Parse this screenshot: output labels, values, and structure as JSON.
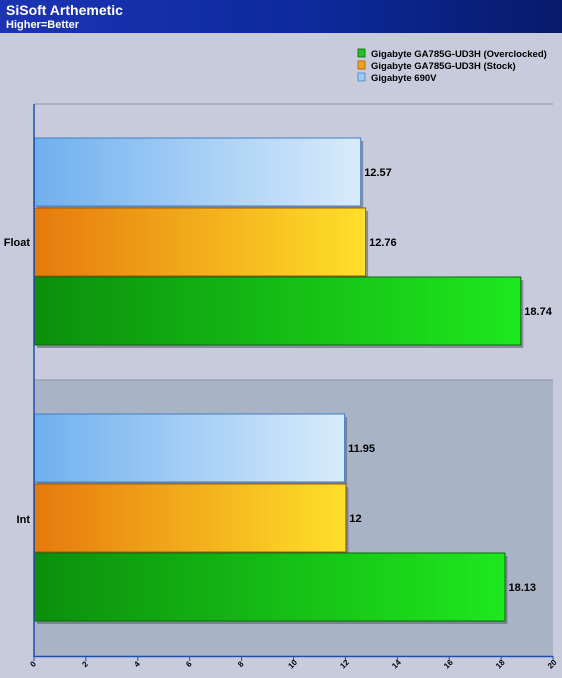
{
  "chart_data": {
    "type": "bar",
    "orientation": "horizontal",
    "title": "SiSoft Arthemetic",
    "subtitle": "Higher=Better",
    "categories": [
      "Float",
      "Int"
    ],
    "series": [
      {
        "name": "Gigabyte 690V",
        "values": [
          12.57,
          11.95
        ],
        "color": "#9ccbf3"
      },
      {
        "name": "Gigabyte GA785G-UD3H (Stock)",
        "values": [
          12.76,
          12
        ],
        "color": "#f3a51b"
      },
      {
        "name": "Gigabyte GA785G-UD3H (Overclocked)",
        "values": [
          18.74,
          18.13
        ],
        "color": "#1fc21f"
      }
    ],
    "data_labels": [
      [
        "12.57",
        "12.76",
        "18.74"
      ],
      [
        "11.95",
        "12",
        "18.13"
      ]
    ],
    "legend_order": [
      "Gigabyte GA785G-UD3H (Overclocked)",
      "Gigabyte GA785G-UD3H (Stock)",
      "Gigabyte 690V"
    ],
    "xlim": [
      0,
      20
    ],
    "xticks": [
      "0",
      "2",
      "4",
      "6",
      "8",
      "10",
      "12",
      "14",
      "16",
      "18",
      "20"
    ],
    "legend_position": "top-right",
    "grid": false
  }
}
